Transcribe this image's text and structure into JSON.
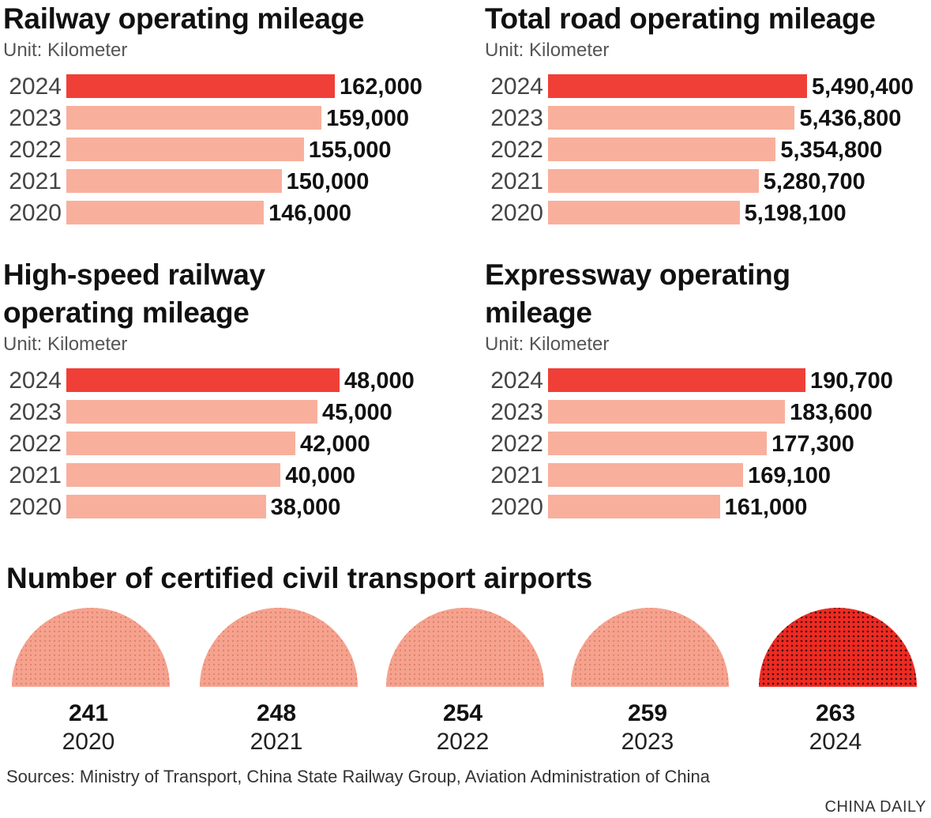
{
  "colors": {
    "highlight": "#f03f37",
    "base": "#f8b09d",
    "dome_base": "#f5a28e",
    "dome_highlight": "#ee2a22",
    "dot_dark": "#3b0d08"
  },
  "chart_data": [
    {
      "type": "bar",
      "title": "Railway operating mileage",
      "subtitle": "Unit: Kilometer",
      "categories": [
        "2024",
        "2023",
        "2022",
        "2021",
        "2020"
      ],
      "values": [
        162000,
        159000,
        155000,
        150000,
        146000
      ],
      "labels": [
        "162,000",
        "159,000",
        "155,000",
        "150,000",
        "146,000"
      ]
    },
    {
      "type": "bar",
      "title": "Total road operating mileage",
      "subtitle": "Unit: Kilometer",
      "categories": [
        "2024",
        "2023",
        "2022",
        "2021",
        "2020"
      ],
      "values": [
        5490400,
        5436800,
        5354800,
        5280700,
        5198100
      ],
      "labels": [
        "5,490,400",
        "5,436,800",
        "5,354,800",
        "5,280,700",
        "5,198,100"
      ]
    },
    {
      "type": "bar",
      "title": "High-speed railway operating mileage",
      "subtitle": "Unit: Kilometer",
      "categories": [
        "2024",
        "2023",
        "2022",
        "2021",
        "2020"
      ],
      "values": [
        48000,
        45000,
        42000,
        40000,
        38000
      ],
      "labels": [
        "48,000",
        "45,000",
        "42,000",
        "40,000",
        "38,000"
      ]
    },
    {
      "type": "bar",
      "title": "Expressway operating mileage",
      "subtitle": "Unit: Kilometer",
      "categories": [
        "2024",
        "2023",
        "2022",
        "2021",
        "2020"
      ],
      "values": [
        190700,
        183600,
        177300,
        169100,
        161000
      ],
      "labels": [
        "190,700",
        "183,600",
        "177,300",
        "169,100",
        "161,000"
      ]
    },
    {
      "type": "bar",
      "title": "Number of certified civil transport airports",
      "categories": [
        "2020",
        "2021",
        "2022",
        "2023",
        "2024"
      ],
      "values": [
        241,
        248,
        254,
        259,
        263
      ]
    }
  ],
  "sources": "Sources: Ministry of Transport, China State Railway Group, Aviation Administration of China",
  "credit": "CHINA DAILY"
}
